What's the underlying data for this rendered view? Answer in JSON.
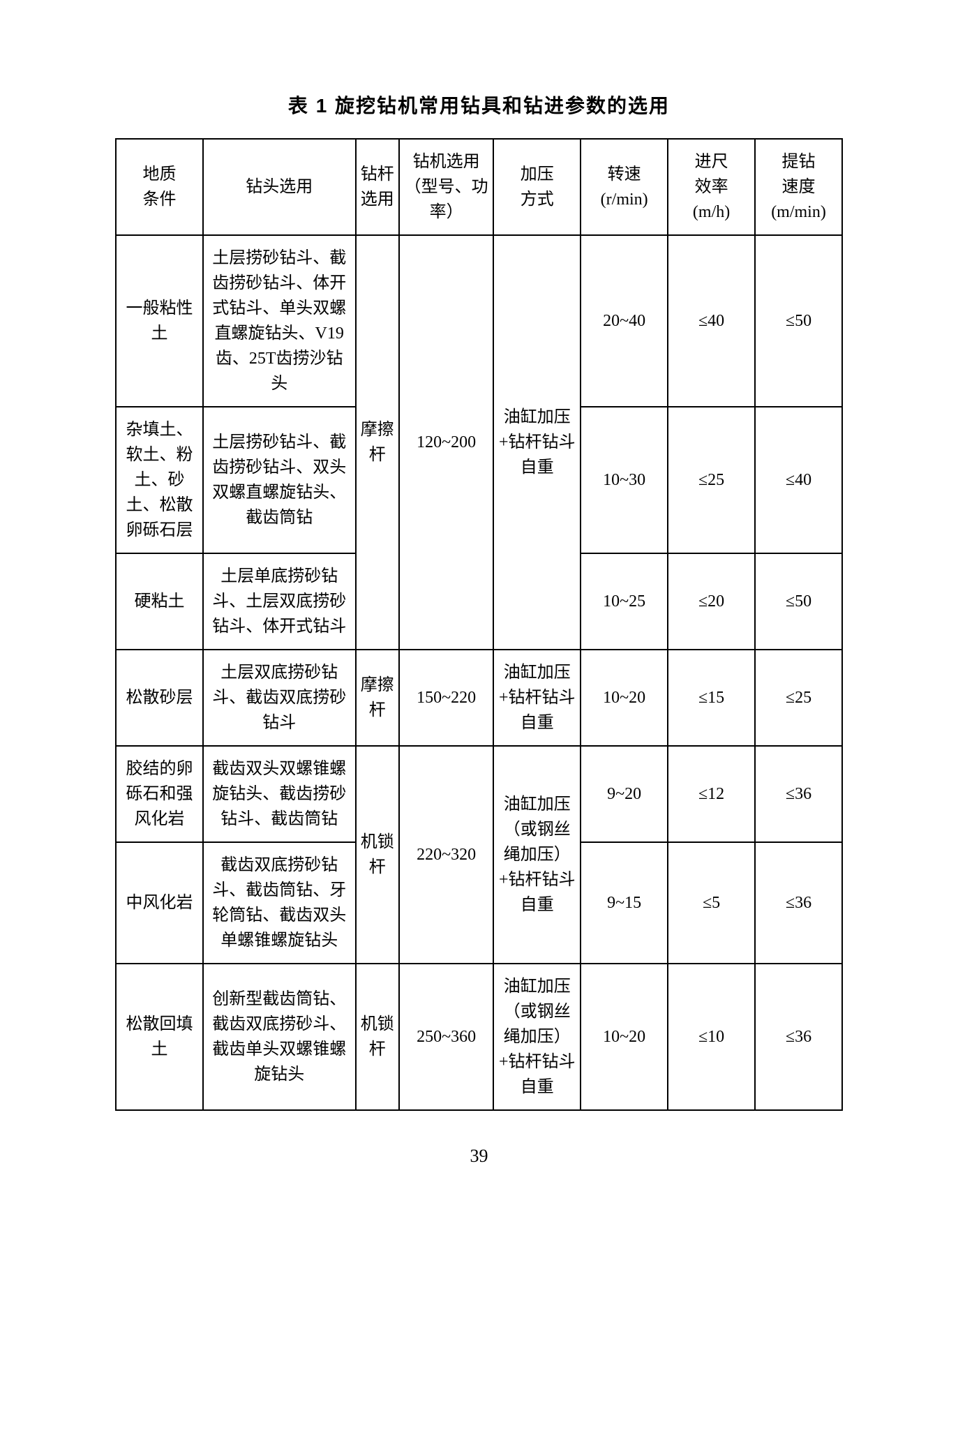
{
  "title": "表 1  旋挖钻机常用钻具和钻进参数的选用",
  "page_number": "39",
  "headers": {
    "h1": "地质\n条件",
    "h2": "钻头选用",
    "h3": "钻杆选用",
    "h4": "钻机选用（型号、功率）",
    "h5": "加压\n方式",
    "h6": "转速\n(r/min)",
    "h7": "进尺\n效率\n(m/h)",
    "h8": "提钻\n速度\n(m/min)"
  },
  "rows": {
    "r1": {
      "geo": "一般粘性土",
      "bit": "土层捞砂钻斗、截齿捞砂钻斗、体开式钻斗、单头双螺直螺旋钻头、V19齿、25T齿捞沙钻头",
      "rod": "摩擦杆",
      "model": "120~200",
      "press": "油缸加压+钻杆钻斗自重",
      "speed": "20~40",
      "eff": "≤40",
      "lift": "≤50"
    },
    "r2": {
      "geo": "杂填土、软土、粉土、砂土、松散卵砾石层",
      "bit": "土层捞砂钻斗、截齿捞砂钻斗、双头双螺直螺旋钻头、截齿筒钻",
      "speed": "10~30",
      "eff": "≤25",
      "lift": "≤40"
    },
    "r3": {
      "geo": "硬粘土",
      "bit": "土层单底捞砂钻斗、土层双底捞砂钻斗、体开式钻斗",
      "speed": "10~25",
      "eff": "≤20",
      "lift": "≤50"
    },
    "r4": {
      "geo": "松散砂层",
      "bit": "土层双底捞砂钻斗、截齿双底捞砂钻斗",
      "rod": "摩擦杆",
      "model": "150~220",
      "press": "油缸加压+钻杆钻斗自重",
      "speed": "10~20",
      "eff": "≤15",
      "lift": "≤25"
    },
    "r5": {
      "geo": "胶结的卵砾石和强风化岩",
      "bit": "截齿双头双螺锥螺旋钻头、截齿捞砂钻斗、截齿筒钻",
      "rod": "机锁杆",
      "model": "220~320",
      "press": "油缸加压（或钢丝绳加压）+钻杆钻斗自重",
      "speed": "9~20",
      "eff": "≤12",
      "lift": "≤36"
    },
    "r6": {
      "geo": "中风化岩",
      "bit": "截齿双底捞砂钻斗、截齿筒钻、牙轮筒钻、截齿双头单螺锥螺旋钻头",
      "speed": "9~15",
      "eff": "≤5",
      "lift": "≤36"
    },
    "r7": {
      "geo": "松散回填土",
      "bit": "创新型截齿筒钻、截齿双底捞砂斗、截齿单头双螺锥螺旋钻头",
      "rod": "机锁杆",
      "model": "250~360",
      "press": "油缸加压（或钢丝绳加压）+钻杆钻斗自重",
      "speed": "10~20",
      "eff": "≤10",
      "lift": "≤36"
    }
  }
}
